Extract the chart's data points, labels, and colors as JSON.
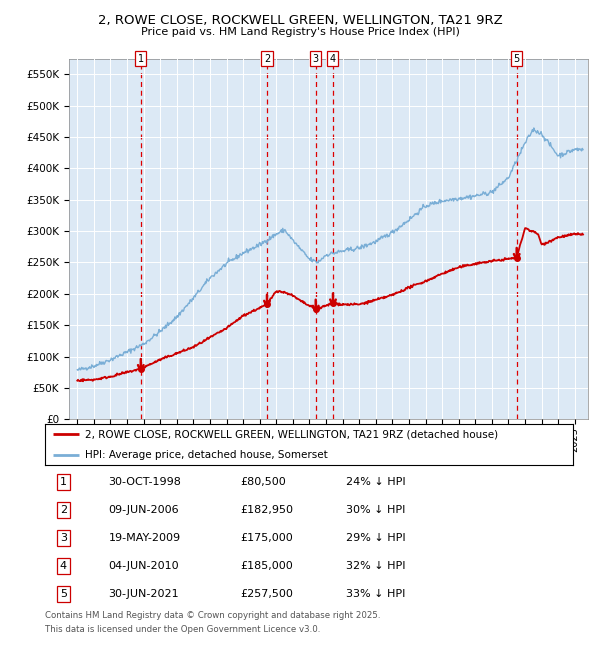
{
  "title_line1": "2, ROWE CLOSE, ROCKWELL GREEN, WELLINGTON, TA21 9RZ",
  "title_line2": "Price paid vs. HM Land Registry's House Price Index (HPI)",
  "plot_bg_color": "#dce9f5",
  "fig_bg_color": "#ffffff",
  "ylim": [
    0,
    575000
  ],
  "yticks": [
    0,
    50000,
    100000,
    150000,
    200000,
    250000,
    300000,
    350000,
    400000,
    450000,
    500000,
    550000
  ],
  "ytick_labels": [
    "£0",
    "£50K",
    "£100K",
    "£150K",
    "£200K",
    "£250K",
    "£300K",
    "£350K",
    "£400K",
    "£450K",
    "£500K",
    "£550K"
  ],
  "red_line_color": "#cc0000",
  "blue_line_color": "#7aaed6",
  "dashed_line_color": "#dd0000",
  "transactions": [
    {
      "num": 1,
      "date_x": 1998.83,
      "price": 80500
    },
    {
      "num": 2,
      "date_x": 2006.44,
      "price": 182950
    },
    {
      "num": 3,
      "date_x": 2009.38,
      "price": 175000
    },
    {
      "num": 4,
      "date_x": 2010.42,
      "price": 185000
    },
    {
      "num": 5,
      "date_x": 2021.5,
      "price": 257500
    }
  ],
  "legend_red_label": "2, ROWE CLOSE, ROCKWELL GREEN, WELLINGTON, TA21 9RZ (detached house)",
  "legend_blue_label": "HPI: Average price, detached house, Somerset",
  "footer_line1": "Contains HM Land Registry data © Crown copyright and database right 2025.",
  "footer_line2": "This data is licensed under the Open Government Licence v3.0.",
  "table_rows": [
    [
      "1",
      "30-OCT-1998",
      "£80,500",
      "24% ↓ HPI"
    ],
    [
      "2",
      "09-JUN-2006",
      "£182,950",
      "30% ↓ HPI"
    ],
    [
      "3",
      "19-MAY-2009",
      "£175,000",
      "29% ↓ HPI"
    ],
    [
      "4",
      "04-JUN-2010",
      "£185,000",
      "32% ↓ HPI"
    ],
    [
      "5",
      "30-JUN-2021",
      "£257,500",
      "33% ↓ HPI"
    ]
  ],
  "xlim_start": 1994.5,
  "xlim_end": 2025.8,
  "hpi_anchors_x": [
    1995,
    1996,
    1997,
    1998,
    1999,
    2000,
    2001,
    2002,
    2003,
    2004,
    2005,
    2006,
    2007,
    2007.5,
    2008,
    2009,
    2009.5,
    2010,
    2011,
    2012,
    2013,
    2014,
    2015,
    2016,
    2017,
    2018,
    2019,
    2020,
    2021,
    2022,
    2022.5,
    2023,
    2024,
    2025
  ],
  "hpi_anchors_y": [
    78000,
    85000,
    95000,
    107000,
    120000,
    140000,
    163000,
    193000,
    225000,
    248000,
    265000,
    278000,
    295000,
    302000,
    285000,
    255000,
    250000,
    262000,
    268000,
    273000,
    283000,
    298000,
    318000,
    340000,
    348000,
    352000,
    356000,
    362000,
    385000,
    440000,
    462000,
    455000,
    420000,
    430000
  ],
  "red_anchors_x": [
    1995,
    1996,
    1997,
    1998.83,
    2000,
    2002,
    2004,
    2005,
    2006.44,
    2007,
    2007.8,
    2008.5,
    2009.38,
    2010.42,
    2011,
    2012,
    2013,
    2014,
    2015,
    2016,
    2017,
    2018,
    2019,
    2020,
    2021.5,
    2022,
    2022.8,
    2023,
    2024,
    2025
  ],
  "red_anchors_y": [
    62000,
    63000,
    68000,
    80500,
    95000,
    115000,
    145000,
    165000,
    182950,
    205000,
    200000,
    188000,
    175000,
    185000,
    183000,
    183000,
    190000,
    198000,
    210000,
    220000,
    232000,
    242000,
    248000,
    252000,
    257500,
    305000,
    295000,
    278000,
    290000,
    295000
  ]
}
